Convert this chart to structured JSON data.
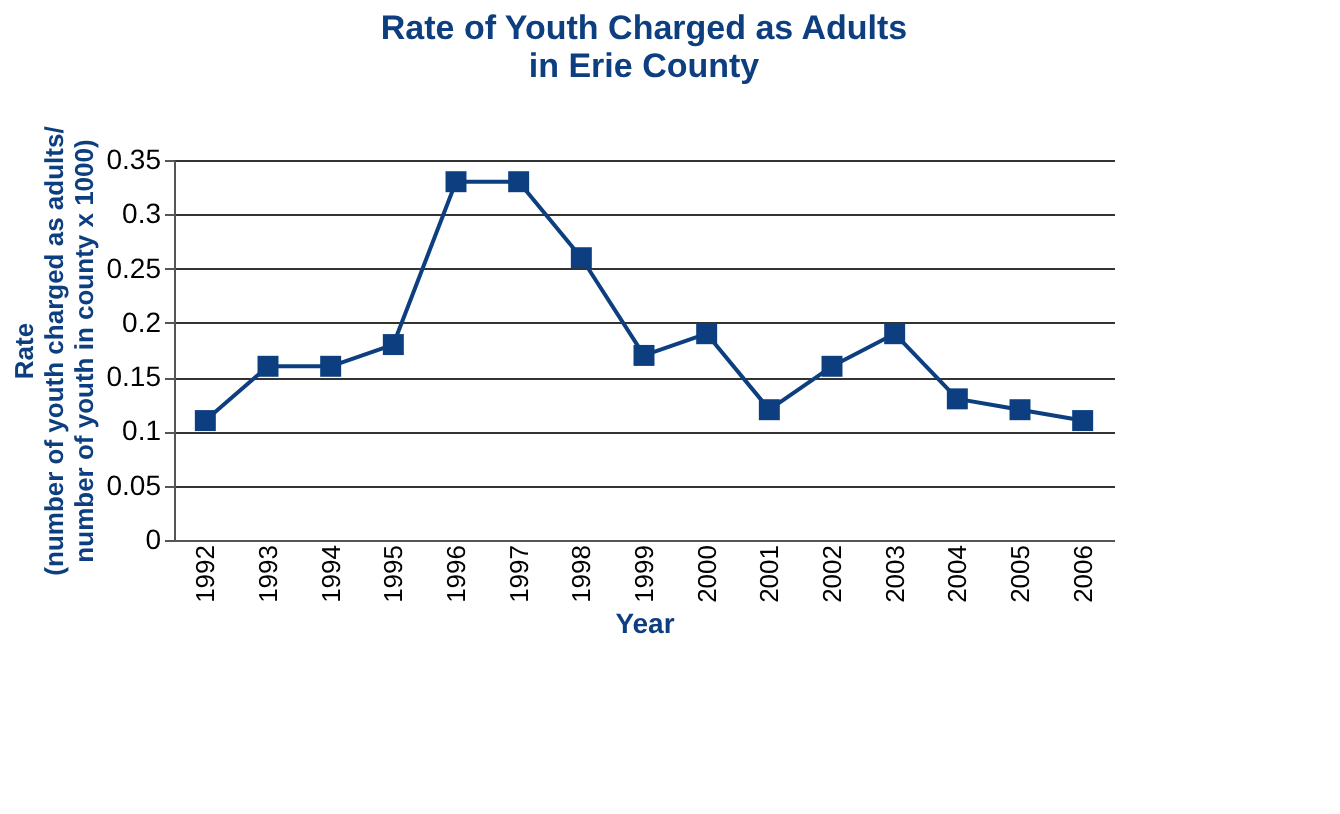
{
  "chart_data": {
    "type": "line",
    "title": "Rate of Youth Charged as Adults\nin Erie County",
    "xlabel": "Year",
    "ylabel": "Rate\n(number of youth charged as adults/\nnumber of youth in county x 1000)",
    "categories": [
      "1992",
      "1993",
      "1994",
      "1995",
      "1996",
      "1997",
      "1998",
      "1999",
      "2000",
      "2001",
      "2002",
      "2003",
      "2004",
      "2005",
      "2006"
    ],
    "series": [
      {
        "color": "#0d3f80",
        "values": [
          0.11,
          0.16,
          0.16,
          0.18,
          0.33,
          0.33,
          0.26,
          0.17,
          0.19,
          0.12,
          0.16,
          0.19,
          0.13,
          0.12,
          0.11
        ]
      }
    ],
    "ylim": [
      0,
      0.35
    ],
    "yticks": [
      0,
      0.05,
      0.1,
      0.15,
      0.2,
      0.25,
      0.3,
      0.35
    ],
    "grid": "y",
    "marker": "square",
    "line_style": "solid"
  }
}
